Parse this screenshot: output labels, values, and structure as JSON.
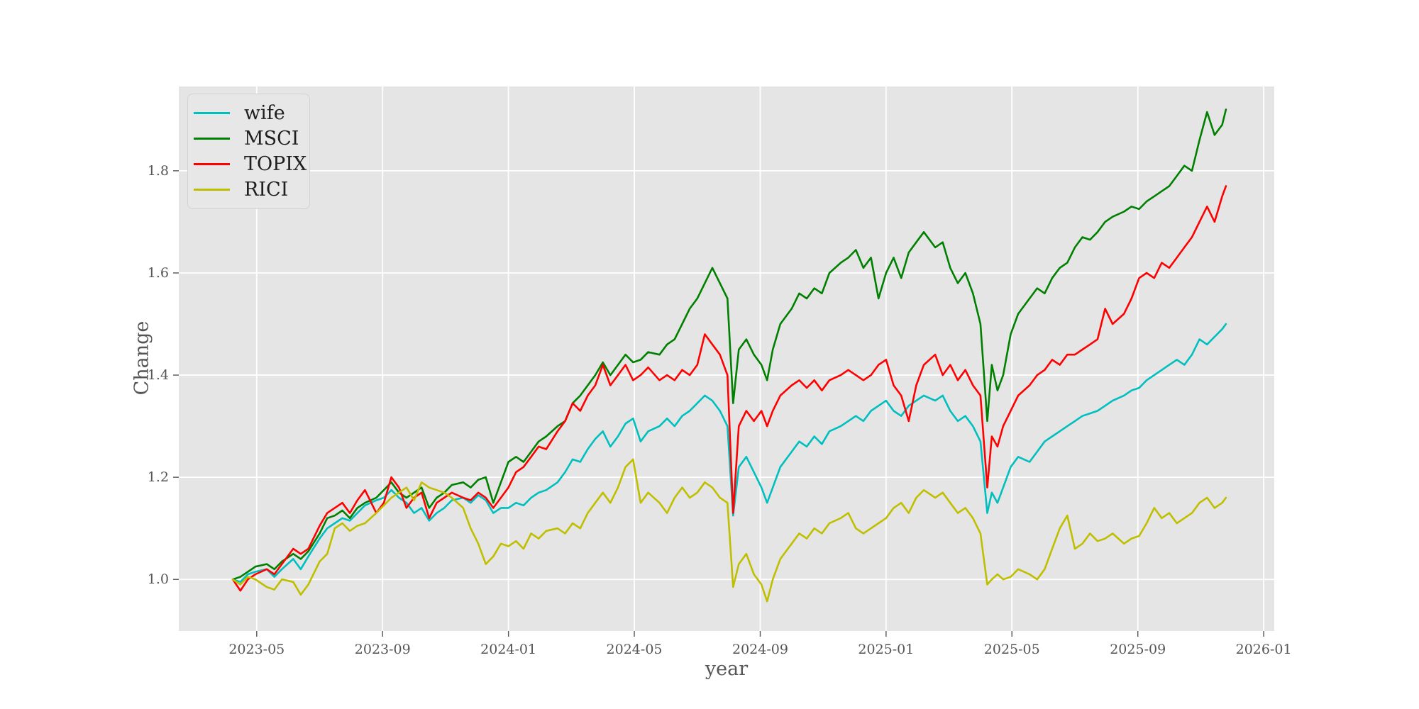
{
  "style": {
    "figure_bg": "#ffffff",
    "plot_bg": "#e5e5e5",
    "grid_color": "#ffffff",
    "tick_mark_color": "#555555",
    "tick_label_color": "#555555",
    "axis_label_color": "#555555",
    "legend_bg": "#e7e7e7",
    "legend_border": "#d2d2d2",
    "legend_text_color": "#1f1f1f"
  },
  "chart_data": {
    "type": "line",
    "title": "",
    "xlabel": "year",
    "ylabel": "Change",
    "grid": true,
    "legend_position": "upper left",
    "x_unit": "decimal_year",
    "x_axis": {
      "lim": [
        2023.127,
        2026.028
      ],
      "ticks": [
        2023.3333,
        2023.6667,
        2024.0,
        2024.3333,
        2024.6667,
        2025.0,
        2025.3333,
        2025.6667,
        2026.0
      ],
      "tick_labels": [
        "2023-05",
        "2023-09",
        "2024-01",
        "2024-05",
        "2024-09",
        "2025-01",
        "2025-05",
        "2025-09",
        "2026-01"
      ]
    },
    "y_axis": {
      "lim": [
        0.899,
        1.965
      ],
      "ticks": [
        1.0,
        1.2,
        1.4,
        1.6,
        1.8
      ],
      "tick_labels": [
        "1.0",
        "1.2",
        "1.4",
        "1.6",
        "1.8"
      ]
    },
    "x": [
      2023.27,
      2023.29,
      2023.31,
      2023.33,
      2023.36,
      2023.38,
      2023.4,
      2023.43,
      2023.45,
      2023.47,
      2023.5,
      2023.52,
      2023.54,
      2023.56,
      2023.58,
      2023.6,
      2023.62,
      2023.65,
      2023.67,
      2023.69,
      2023.71,
      2023.73,
      2023.75,
      2023.77,
      2023.79,
      2023.81,
      2023.83,
      2023.85,
      2023.88,
      2023.9,
      2023.92,
      2023.94,
      2023.96,
      2023.98,
      2024.0,
      2024.02,
      2024.04,
      2024.06,
      2024.08,
      2024.1,
      2024.13,
      2024.15,
      2024.17,
      2024.19,
      2024.21,
      2024.23,
      2024.25,
      2024.27,
      2024.29,
      2024.31,
      2024.33,
      2024.35,
      2024.37,
      2024.4,
      2024.42,
      2024.44,
      2024.46,
      2024.48,
      2024.5,
      2024.52,
      2024.54,
      2024.56,
      2024.58,
      2024.595,
      2024.61,
      2024.63,
      2024.65,
      2024.67,
      2024.685,
      2024.7,
      2024.72,
      2024.75,
      2024.77,
      2024.79,
      2024.81,
      2024.83,
      2024.85,
      2024.88,
      2024.9,
      2024.92,
      2024.94,
      2024.96,
      2024.98,
      2025.0,
      2025.02,
      2025.04,
      2025.06,
      2025.08,
      2025.1,
      2025.13,
      2025.15,
      2025.17,
      2025.19,
      2025.21,
      2025.23,
      2025.25,
      2025.268,
      2025.28,
      2025.295,
      2025.31,
      2025.33,
      2025.35,
      2025.38,
      2025.4,
      2025.42,
      2025.44,
      2025.46,
      2025.48,
      2025.5,
      2025.52,
      2025.54,
      2025.56,
      2025.58,
      2025.6,
      2025.63,
      2025.65,
      2025.67,
      2025.69,
      2025.71,
      2025.73,
      2025.75,
      2025.77,
      2025.79,
      2025.81,
      2025.83,
      2025.85,
      2025.87,
      2025.89,
      2025.9
    ],
    "series": [
      {
        "name": "wife",
        "color": "#00bfbf",
        "values": [
          1.0,
          0.995,
          1.01,
          1.015,
          1.02,
          1.005,
          1.02,
          1.04,
          1.02,
          1.045,
          1.08,
          1.1,
          1.11,
          1.12,
          1.115,
          1.13,
          1.145,
          1.155,
          1.16,
          1.175,
          1.16,
          1.15,
          1.13,
          1.14,
          1.115,
          1.13,
          1.14,
          1.155,
          1.16,
          1.15,
          1.165,
          1.155,
          1.13,
          1.14,
          1.14,
          1.15,
          1.145,
          1.16,
          1.17,
          1.175,
          1.19,
          1.21,
          1.235,
          1.23,
          1.255,
          1.275,
          1.29,
          1.26,
          1.28,
          1.305,
          1.315,
          1.27,
          1.29,
          1.3,
          1.315,
          1.3,
          1.32,
          1.33,
          1.345,
          1.36,
          1.35,
          1.33,
          1.3,
          1.125,
          1.22,
          1.24,
          1.21,
          1.18,
          1.15,
          1.18,
          1.22,
          1.25,
          1.27,
          1.26,
          1.28,
          1.265,
          1.29,
          1.3,
          1.31,
          1.32,
          1.31,
          1.33,
          1.34,
          1.35,
          1.33,
          1.32,
          1.34,
          1.35,
          1.36,
          1.35,
          1.36,
          1.33,
          1.31,
          1.32,
          1.3,
          1.27,
          1.13,
          1.17,
          1.15,
          1.18,
          1.22,
          1.24,
          1.23,
          1.25,
          1.27,
          1.28,
          1.29,
          1.3,
          1.31,
          1.32,
          1.325,
          1.33,
          1.34,
          1.35,
          1.36,
          1.37,
          1.375,
          1.39,
          1.4,
          1.41,
          1.42,
          1.43,
          1.42,
          1.44,
          1.47,
          1.46,
          1.475,
          1.49,
          1.5
        ]
      },
      {
        "name": "MSCI",
        "color": "#008000",
        "values": [
          1.0,
          1.005,
          1.015,
          1.025,
          1.03,
          1.02,
          1.035,
          1.05,
          1.04,
          1.055,
          1.09,
          1.12,
          1.125,
          1.135,
          1.12,
          1.14,
          1.15,
          1.16,
          1.175,
          1.19,
          1.17,
          1.16,
          1.17,
          1.18,
          1.14,
          1.16,
          1.17,
          1.185,
          1.19,
          1.18,
          1.195,
          1.2,
          1.15,
          1.19,
          1.23,
          1.24,
          1.23,
          1.25,
          1.27,
          1.28,
          1.3,
          1.31,
          1.345,
          1.36,
          1.38,
          1.4,
          1.425,
          1.4,
          1.42,
          1.44,
          1.425,
          1.43,
          1.445,
          1.44,
          1.46,
          1.47,
          1.5,
          1.53,
          1.55,
          1.58,
          1.61,
          1.58,
          1.55,
          1.345,
          1.45,
          1.47,
          1.44,
          1.42,
          1.39,
          1.45,
          1.5,
          1.53,
          1.56,
          1.55,
          1.57,
          1.56,
          1.6,
          1.62,
          1.63,
          1.645,
          1.61,
          1.63,
          1.55,
          1.6,
          1.63,
          1.59,
          1.64,
          1.66,
          1.68,
          1.65,
          1.66,
          1.61,
          1.58,
          1.6,
          1.56,
          1.5,
          1.31,
          1.42,
          1.37,
          1.4,
          1.48,
          1.52,
          1.55,
          1.57,
          1.56,
          1.59,
          1.61,
          1.62,
          1.65,
          1.67,
          1.665,
          1.68,
          1.7,
          1.71,
          1.72,
          1.73,
          1.725,
          1.74,
          1.75,
          1.76,
          1.77,
          1.79,
          1.81,
          1.8,
          1.86,
          1.915,
          1.87,
          1.89,
          1.92
        ]
      },
      {
        "name": "TOPIX",
        "color": "#ff0000",
        "values": [
          1.0,
          0.978,
          1.0,
          1.01,
          1.02,
          1.01,
          1.03,
          1.06,
          1.05,
          1.06,
          1.105,
          1.13,
          1.14,
          1.15,
          1.13,
          1.155,
          1.175,
          1.13,
          1.15,
          1.2,
          1.18,
          1.14,
          1.16,
          1.17,
          1.12,
          1.15,
          1.16,
          1.17,
          1.16,
          1.155,
          1.17,
          1.16,
          1.14,
          1.16,
          1.18,
          1.21,
          1.22,
          1.24,
          1.26,
          1.255,
          1.29,
          1.31,
          1.345,
          1.33,
          1.36,
          1.38,
          1.42,
          1.38,
          1.4,
          1.42,
          1.39,
          1.4,
          1.415,
          1.39,
          1.4,
          1.39,
          1.41,
          1.4,
          1.42,
          1.48,
          1.46,
          1.44,
          1.4,
          1.13,
          1.3,
          1.33,
          1.31,
          1.33,
          1.3,
          1.33,
          1.36,
          1.38,
          1.39,
          1.375,
          1.39,
          1.37,
          1.39,
          1.4,
          1.41,
          1.4,
          1.39,
          1.4,
          1.42,
          1.43,
          1.38,
          1.36,
          1.31,
          1.38,
          1.42,
          1.44,
          1.4,
          1.42,
          1.39,
          1.41,
          1.38,
          1.36,
          1.18,
          1.28,
          1.26,
          1.3,
          1.33,
          1.36,
          1.38,
          1.4,
          1.41,
          1.43,
          1.42,
          1.44,
          1.44,
          1.45,
          1.46,
          1.47,
          1.53,
          1.5,
          1.52,
          1.55,
          1.59,
          1.6,
          1.59,
          1.62,
          1.61,
          1.63,
          1.65,
          1.67,
          1.7,
          1.73,
          1.7,
          1.75,
          1.77
        ]
      },
      {
        "name": "RICI",
        "color": "#bfbf00",
        "values": [
          1.0,
          0.99,
          1.005,
          1.0,
          0.985,
          0.98,
          1.0,
          0.995,
          0.97,
          0.99,
          1.035,
          1.05,
          1.1,
          1.11,
          1.095,
          1.105,
          1.11,
          1.13,
          1.145,
          1.16,
          1.17,
          1.18,
          1.155,
          1.19,
          1.18,
          1.175,
          1.17,
          1.16,
          1.14,
          1.1,
          1.07,
          1.03,
          1.045,
          1.07,
          1.065,
          1.075,
          1.06,
          1.09,
          1.08,
          1.095,
          1.1,
          1.09,
          1.11,
          1.1,
          1.13,
          1.15,
          1.17,
          1.15,
          1.18,
          1.22,
          1.235,
          1.15,
          1.17,
          1.15,
          1.13,
          1.16,
          1.18,
          1.16,
          1.17,
          1.19,
          1.18,
          1.16,
          1.15,
          0.985,
          1.03,
          1.05,
          1.01,
          0.99,
          0.957,
          1.0,
          1.04,
          1.07,
          1.09,
          1.08,
          1.1,
          1.09,
          1.11,
          1.12,
          1.13,
          1.1,
          1.09,
          1.1,
          1.11,
          1.12,
          1.14,
          1.15,
          1.13,
          1.16,
          1.175,
          1.16,
          1.17,
          1.15,
          1.13,
          1.14,
          1.12,
          1.09,
          0.99,
          1.0,
          1.01,
          1.0,
          1.005,
          1.02,
          1.01,
          1.0,
          1.02,
          1.06,
          1.1,
          1.125,
          1.06,
          1.07,
          1.09,
          1.075,
          1.08,
          1.09,
          1.07,
          1.08,
          1.085,
          1.11,
          1.14,
          1.12,
          1.13,
          1.11,
          1.12,
          1.13,
          1.15,
          1.16,
          1.14,
          1.15,
          1.16
        ]
      }
    ]
  }
}
